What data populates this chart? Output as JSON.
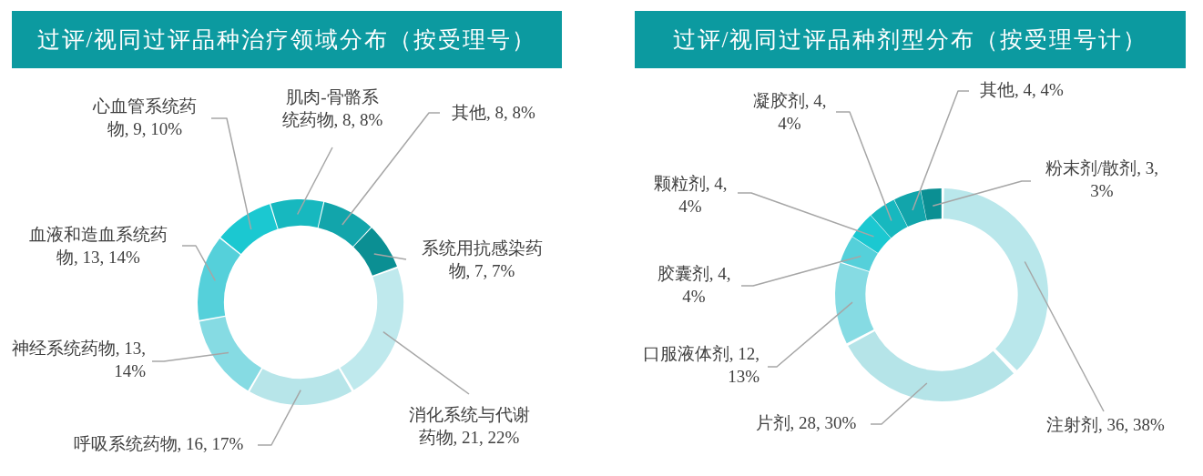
{
  "chart_data": [
    {
      "type": "donut",
      "title": "过评/视同过评品种治疗领域分布（按受理号）",
      "categories": [
        "消化系统与代谢药物",
        "呼吸系统药物",
        "神经系统药物",
        "血液和造血系统药物",
        "心血管系统药物",
        "肌肉-骨骼系统药物",
        "其他",
        "系统用抗感染药物"
      ],
      "values": [
        21,
        16,
        13,
        13,
        9,
        8,
        8,
        7
      ],
      "value_labels": [
        "21, 22%",
        "16, 17%",
        "13, 14%",
        "13, 14%",
        "9, 10%",
        "8, 8%",
        "8, 8%",
        "7, 7%"
      ],
      "colors": [
        "#bfe9ed",
        "#b7e5e9",
        "#86dbe3",
        "#55d0da",
        "#1bc8d1",
        "#17b8bf",
        "#12a5ab",
        "#0b8f93"
      ]
    },
    {
      "type": "donut",
      "title": "过评/视同过评品种剂型分布（按受理号计）",
      "categories": [
        "注射剂",
        "片剂",
        "口服液体剂",
        "胶囊剂",
        "颗粒剂",
        "凝胶剂",
        "其他",
        "粉末剂/散剂"
      ],
      "values": [
        36,
        28,
        12,
        4,
        4,
        4,
        4,
        3
      ],
      "value_labels": [
        "36, 38%",
        "28, 30%",
        "12, 13%",
        "4, 4%",
        "4, 4%",
        "4, 4%",
        "4, 4%",
        "3, 3%"
      ],
      "colors": [
        "#b9e7eb",
        "#b5e4e8",
        "#86dbe3",
        "#55d0da",
        "#1bc8d1",
        "#17b8bf",
        "#12a5ab",
        "#0b8f93"
      ]
    }
  ]
}
